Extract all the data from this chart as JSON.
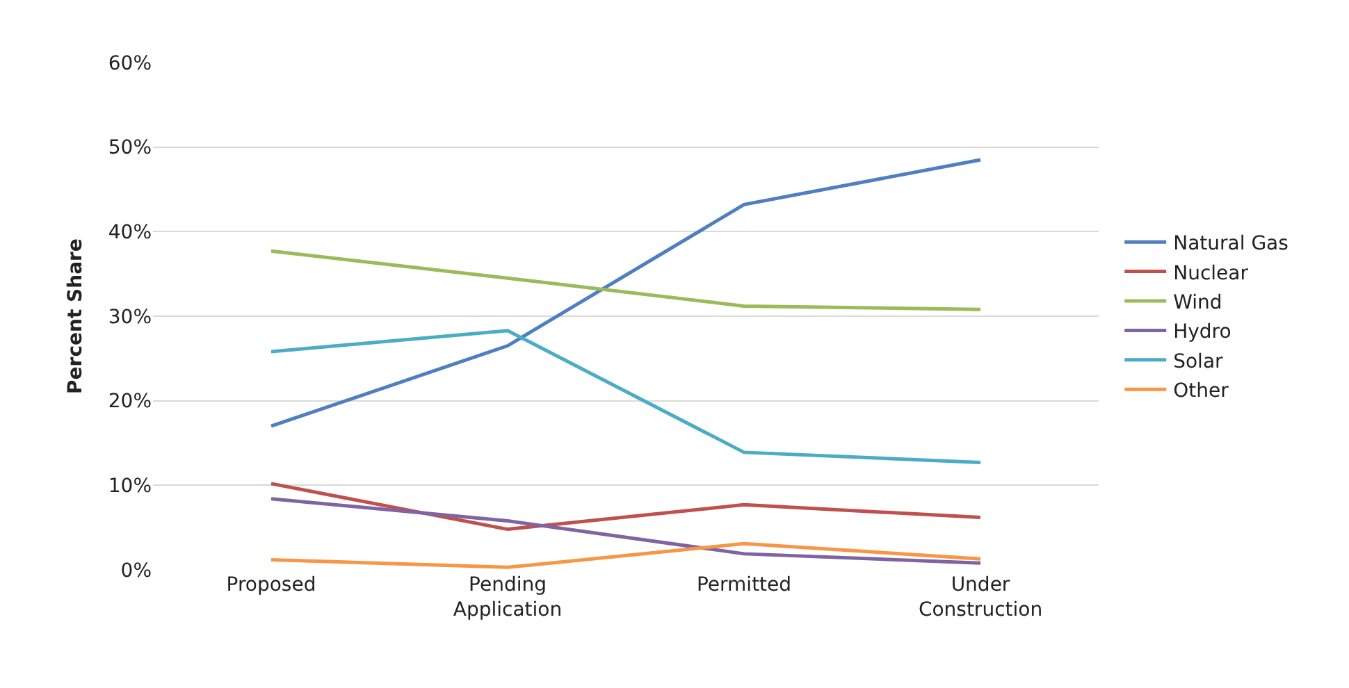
{
  "chart_data": {
    "type": "line",
    "ylabel": "Percent Share",
    "categories": [
      "Proposed",
      "Pending Application",
      "Permitted",
      "Under Construction"
    ],
    "series": [
      {
        "name": "Natural Gas",
        "color": "#4f7fc0",
        "values": [
          17.0,
          26.5,
          43.2,
          48.5
        ]
      },
      {
        "name": "Nuclear",
        "color": "#c0504d",
        "values": [
          10.2,
          4.8,
          7.7,
          6.2
        ]
      },
      {
        "name": "Wind",
        "color": "#9bbb59",
        "values": [
          37.7,
          34.5,
          31.2,
          30.8
        ]
      },
      {
        "name": "Hydro",
        "color": "#8064a2",
        "values": [
          8.4,
          5.8,
          1.9,
          0.8
        ]
      },
      {
        "name": "Solar",
        "color": "#4bacc6",
        "values": [
          25.8,
          28.3,
          13.9,
          12.7
        ]
      },
      {
        "name": "Other",
        "color": "#f79646",
        "values": [
          1.2,
          0.3,
          3.1,
          1.3
        ]
      }
    ],
    "ylim": [
      0,
      60
    ],
    "yticks": [
      {
        "value": 0,
        "label": "0%"
      },
      {
        "value": 10,
        "label": "10%"
      },
      {
        "value": 20,
        "label": "20%"
      },
      {
        "value": 30,
        "label": "30%"
      },
      {
        "value": 40,
        "label": "40%"
      },
      {
        "value": 50,
        "label": "50%"
      },
      {
        "value": 60,
        "label": "60%"
      }
    ],
    "grid": "y",
    "legend": "right",
    "marker": "none",
    "line_style": "solid"
  }
}
